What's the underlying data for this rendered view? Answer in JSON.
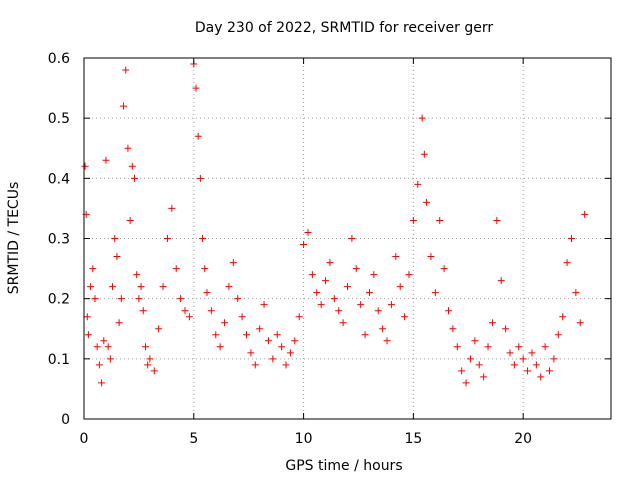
{
  "chart_data": {
    "type": "scatter",
    "title": "Day 230 of 2022, SRMTID for receiver gerr",
    "xlabel": "GPS time / hours",
    "ylabel": "SRMTID / TECUs",
    "xlim": [
      0,
      24
    ],
    "ylim": [
      0,
      0.6
    ],
    "xticks": [
      0,
      5,
      10,
      15,
      20
    ],
    "xtick_labels": [
      "0",
      "5",
      "10",
      "15",
      "20"
    ],
    "yticks": [
      0,
      0.1,
      0.2,
      0.3,
      0.4,
      0.5,
      0.6
    ],
    "ytick_labels": [
      "0",
      "0.1",
      "0.2",
      "0.3",
      "0.4",
      "0.5",
      "0.6"
    ],
    "grid": true,
    "marker": "plus",
    "color": "#ff0000",
    "series": [
      {
        "name": "SRMTID",
        "x": [
          0.05,
          0.1,
          0.15,
          0.2,
          0.3,
          0.4,
          0.5,
          0.6,
          0.7,
          0.8,
          0.9,
          1.0,
          1.1,
          1.2,
          1.3,
          1.4,
          1.5,
          1.6,
          1.7,
          1.8,
          1.9,
          2.0,
          2.1,
          2.2,
          2.3,
          2.4,
          2.5,
          2.6,
          2.7,
          2.8,
          2.9,
          3.0,
          3.2,
          3.4,
          3.6,
          3.8,
          4.0,
          4.2,
          4.4,
          4.6,
          4.8,
          5.0,
          5.1,
          5.2,
          5.3,
          5.4,
          5.5,
          5.6,
          5.8,
          6.0,
          6.2,
          6.4,
          6.6,
          6.8,
          7.0,
          7.2,
          7.4,
          7.6,
          7.8,
          8.0,
          8.2,
          8.4,
          8.6,
          8.8,
          9.0,
          9.2,
          9.4,
          9.6,
          9.8,
          10.0,
          10.2,
          10.4,
          10.6,
          10.8,
          11.0,
          11.2,
          11.4,
          11.6,
          11.8,
          12.0,
          12.2,
          12.4,
          12.6,
          12.8,
          13.0,
          13.2,
          13.4,
          13.6,
          13.8,
          14.0,
          14.2,
          14.4,
          14.6,
          14.8,
          15.0,
          15.2,
          15.4,
          15.5,
          15.6,
          15.8,
          16.0,
          16.2,
          16.4,
          16.6,
          16.8,
          17.0,
          17.2,
          17.4,
          17.6,
          17.8,
          18.0,
          18.2,
          18.4,
          18.6,
          18.8,
          19.0,
          19.2,
          19.4,
          19.6,
          19.8,
          20.0,
          20.2,
          20.4,
          20.6,
          20.8,
          21.0,
          21.2,
          21.4,
          21.6,
          21.8,
          22.0,
          22.2,
          22.4,
          22.6,
          22.8
        ],
        "y": [
          0.42,
          0.34,
          0.17,
          0.14,
          0.22,
          0.25,
          0.2,
          0.12,
          0.09,
          0.06,
          0.13,
          0.43,
          0.12,
          0.1,
          0.22,
          0.3,
          0.27,
          0.16,
          0.2,
          0.52,
          0.58,
          0.45,
          0.33,
          0.42,
          0.4,
          0.24,
          0.2,
          0.22,
          0.18,
          0.12,
          0.09,
          0.1,
          0.08,
          0.15,
          0.22,
          0.3,
          0.35,
          0.25,
          0.2,
          0.18,
          0.17,
          0.59,
          0.55,
          0.47,
          0.4,
          0.3,
          0.25,
          0.21,
          0.18,
          0.14,
          0.12,
          0.16,
          0.22,
          0.26,
          0.2,
          0.17,
          0.14,
          0.11,
          0.09,
          0.15,
          0.19,
          0.13,
          0.1,
          0.14,
          0.12,
          0.09,
          0.11,
          0.13,
          0.17,
          0.29,
          0.31,
          0.24,
          0.21,
          0.19,
          0.23,
          0.26,
          0.2,
          0.18,
          0.16,
          0.22,
          0.3,
          0.25,
          0.19,
          0.14,
          0.21,
          0.24,
          0.18,
          0.15,
          0.13,
          0.19,
          0.27,
          0.22,
          0.17,
          0.24,
          0.33,
          0.39,
          0.5,
          0.44,
          0.36,
          0.27,
          0.21,
          0.33,
          0.25,
          0.18,
          0.15,
          0.12,
          0.08,
          0.06,
          0.1,
          0.13,
          0.09,
          0.07,
          0.12,
          0.16,
          0.33,
          0.23,
          0.15,
          0.11,
          0.09,
          0.12,
          0.1,
          0.08,
          0.11,
          0.09,
          0.07,
          0.12,
          0.08,
          0.1,
          0.14,
          0.17,
          0.26,
          0.3,
          0.21,
          0.16,
          0.34
        ]
      }
    ]
  }
}
